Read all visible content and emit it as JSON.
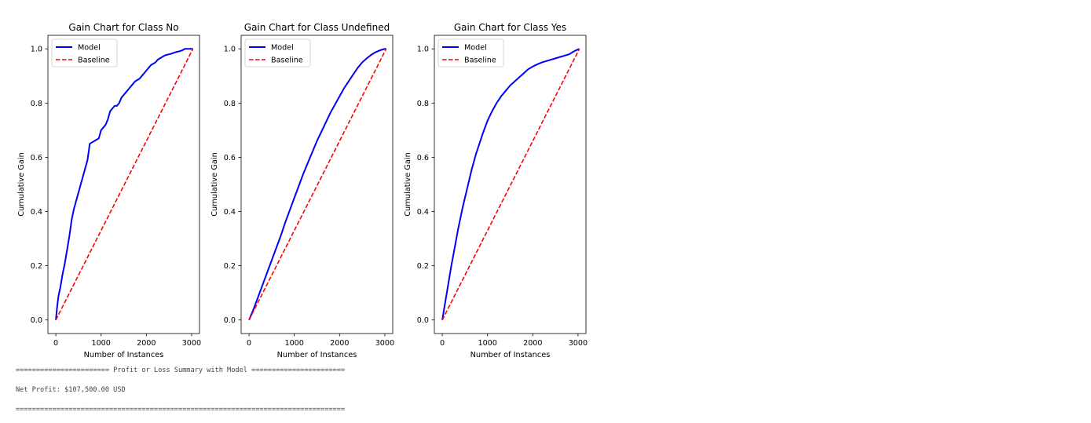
{
  "chart_data": [
    {
      "type": "line",
      "title": "Gain Chart for Class No",
      "xlabel": "Number of Instances",
      "ylabel": "Cumulative Gain",
      "xlim": [
        -175,
        3175
      ],
      "ylim": [
        -0.05,
        1.05
      ],
      "xticks": [
        0,
        1000,
        2000,
        3000
      ],
      "yticks": [
        0.0,
        0.2,
        0.4,
        0.6,
        0.8,
        1.0
      ],
      "legend": "top-left",
      "grid": false,
      "series": [
        {
          "name": "Model",
          "color": "#0000ff",
          "style": "solid",
          "x": [
            0,
            30,
            60,
            100,
            150,
            200,
            250,
            300,
            350,
            400,
            450,
            500,
            550,
            600,
            650,
            700,
            750,
            800,
            850,
            900,
            950,
            1000,
            1050,
            1100,
            1150,
            1200,
            1250,
            1300,
            1350,
            1400,
            1450,
            1500,
            1550,
            1600,
            1650,
            1700,
            1750,
            1800,
            1850,
            1900,
            1950,
            2000,
            2050,
            2100,
            2150,
            2200,
            2250,
            2300,
            2350,
            2400,
            2450,
            2500,
            2550,
            2600,
            2650,
            2700,
            2750,
            2800,
            2850,
            2900,
            2950,
            3000,
            3030
          ],
          "y": [
            0.0,
            0.05,
            0.09,
            0.12,
            0.17,
            0.21,
            0.26,
            0.31,
            0.37,
            0.41,
            0.44,
            0.47,
            0.5,
            0.53,
            0.56,
            0.59,
            0.65,
            0.655,
            0.66,
            0.665,
            0.67,
            0.7,
            0.71,
            0.72,
            0.74,
            0.77,
            0.78,
            0.79,
            0.79,
            0.8,
            0.82,
            0.83,
            0.84,
            0.85,
            0.86,
            0.87,
            0.88,
            0.885,
            0.89,
            0.9,
            0.91,
            0.92,
            0.93,
            0.94,
            0.945,
            0.95,
            0.96,
            0.965,
            0.97,
            0.975,
            0.978,
            0.98,
            0.982,
            0.985,
            0.988,
            0.99,
            0.992,
            0.995,
            1.0,
            1.0,
            1.0,
            1.0,
            1.0
          ]
        },
        {
          "name": "Baseline",
          "color": "#ff0000",
          "style": "dashed",
          "x": [
            0,
            3030
          ],
          "y": [
            0.0,
            1.0
          ]
        }
      ]
    },
    {
      "type": "line",
      "title": "Gain Chart for Class Undefined",
      "xlabel": "Number of Instances",
      "ylabel": "Cumulative Gain",
      "xlim": [
        -175,
        3175
      ],
      "ylim": [
        -0.05,
        1.05
      ],
      "xticks": [
        0,
        1000,
        2000,
        3000
      ],
      "yticks": [
        0.0,
        0.2,
        0.4,
        0.6,
        0.8,
        1.0
      ],
      "legend": "top-left",
      "grid": false,
      "series": [
        {
          "name": "Model",
          "color": "#0000ff",
          "style": "solid",
          "x": [
            0,
            100,
            200,
            300,
            400,
            500,
            600,
            700,
            800,
            900,
            1000,
            1100,
            1200,
            1300,
            1400,
            1500,
            1600,
            1700,
            1800,
            1900,
            2000,
            2100,
            2200,
            2300,
            2400,
            2500,
            2600,
            2700,
            2800,
            2900,
            3000,
            3030
          ],
          "y": [
            0.0,
            0.04,
            0.085,
            0.13,
            0.175,
            0.22,
            0.265,
            0.31,
            0.36,
            0.405,
            0.45,
            0.495,
            0.54,
            0.58,
            0.62,
            0.66,
            0.695,
            0.73,
            0.765,
            0.795,
            0.825,
            0.855,
            0.88,
            0.905,
            0.93,
            0.95,
            0.965,
            0.978,
            0.988,
            0.995,
            1.0,
            1.0
          ]
        },
        {
          "name": "Baseline",
          "color": "#ff0000",
          "style": "dashed",
          "x": [
            0,
            3030
          ],
          "y": [
            0.0,
            1.0
          ]
        }
      ]
    },
    {
      "type": "line",
      "title": "Gain Chart for Class Yes",
      "xlabel": "Number of Instances",
      "ylabel": "Cumulative Gain",
      "xlim": [
        -175,
        3175
      ],
      "ylim": [
        -0.05,
        1.05
      ],
      "xticks": [
        0,
        1000,
        2000,
        3000
      ],
      "yticks": [
        0.0,
        0.2,
        0.4,
        0.6,
        0.8,
        1.0
      ],
      "legend": "top-left",
      "grid": false,
      "series": [
        {
          "name": "Model",
          "color": "#0000ff",
          "style": "solid",
          "x": [
            0,
            50,
            100,
            150,
            200,
            250,
            300,
            350,
            400,
            450,
            500,
            550,
            600,
            650,
            700,
            750,
            800,
            900,
            1000,
            1100,
            1200,
            1300,
            1400,
            1500,
            1600,
            1700,
            1800,
            1900,
            2000,
            2100,
            2200,
            2300,
            2400,
            2500,
            2600,
            2700,
            2800,
            2900,
            3000,
            3030
          ],
          "y": [
            0.0,
            0.05,
            0.1,
            0.15,
            0.2,
            0.245,
            0.29,
            0.335,
            0.375,
            0.415,
            0.45,
            0.485,
            0.52,
            0.555,
            0.585,
            0.615,
            0.64,
            0.69,
            0.735,
            0.77,
            0.8,
            0.825,
            0.845,
            0.865,
            0.88,
            0.895,
            0.91,
            0.925,
            0.935,
            0.943,
            0.95,
            0.955,
            0.96,
            0.965,
            0.97,
            0.975,
            0.98,
            0.99,
            0.998,
            1.0
          ]
        },
        {
          "name": "Baseline",
          "color": "#ff0000",
          "style": "dashed",
          "x": [
            0,
            3030
          ],
          "y": [
            0.0,
            1.0
          ]
        }
      ]
    }
  ],
  "output": {
    "separator_top": "======================= Profit or Loss Summary with Model =======================",
    "net_profit": "Net Profit: $107,500.00 USD",
    "separator_bottom": "================================================================================="
  }
}
